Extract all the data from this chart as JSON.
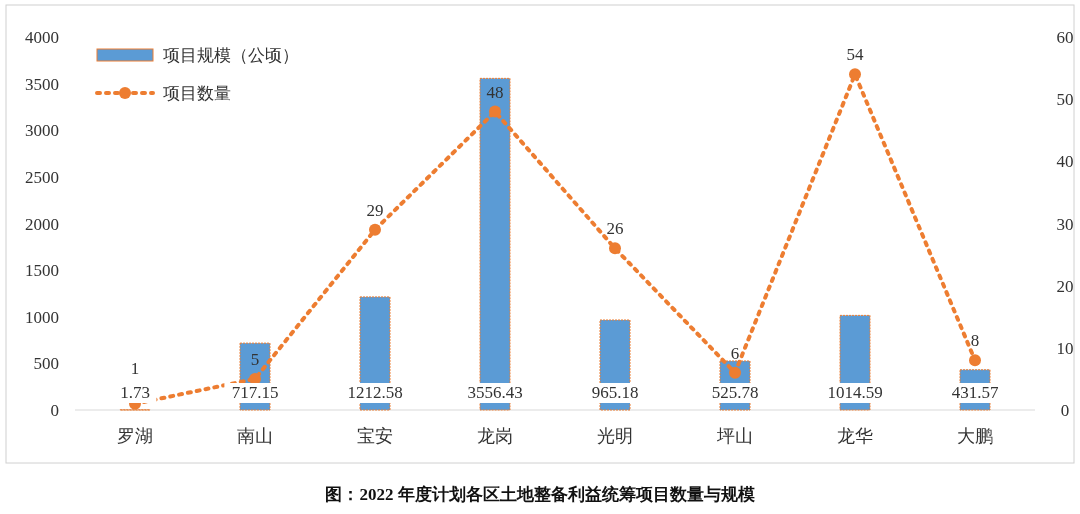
{
  "chart_data": {
    "type": "bar",
    "title": "图：2022 年度计划各区土地整备利益统筹项目数量与规模",
    "categories": [
      "罗湖",
      "南山",
      "宝安",
      "龙岗",
      "光明",
      "坪山",
      "龙华",
      "大鹏"
    ],
    "series": [
      {
        "name": "项目规模（公顷）",
        "color": "#5b9bd5",
        "values": [
          1.73,
          717.15,
          1212.58,
          3556.43,
          965.18,
          525.78,
          1014.59,
          431.57
        ]
      },
      {
        "name": "项目数量",
        "type": "line",
        "axis": "y2",
        "color": "#ed7d31",
        "marker": "circle",
        "line_style": "dotted",
        "values": [
          1,
          5,
          29,
          48,
          26,
          6,
          54,
          8
        ]
      }
    ],
    "ylim": [
      0,
      4000
    ],
    "yticks": [
      0,
      500,
      1000,
      1500,
      2000,
      2500,
      3000,
      3500,
      4000
    ],
    "y2lim": [
      0,
      60
    ],
    "y2ticks": [
      0,
      10,
      20,
      30,
      40,
      50,
      60
    ],
    "data_labels": true,
    "legend": "top left",
    "grid": false
  }
}
